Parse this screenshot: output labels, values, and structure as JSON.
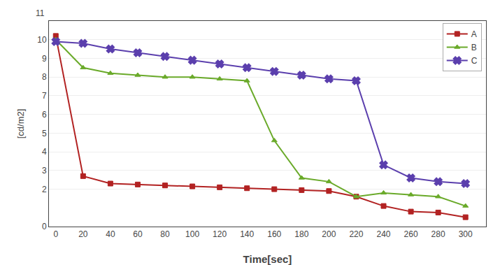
{
  "chart_data": {
    "type": "line",
    "x_label": "Time[sec]",
    "y_label": "[cd/m2]",
    "x": [
      0,
      20,
      40,
      60,
      80,
      100,
      120,
      140,
      160,
      180,
      200,
      220,
      240,
      260,
      280,
      300
    ],
    "series": [
      {
        "name": "A",
        "color": "#b22222",
        "marker": "square",
        "values": [
          10.2,
          2.7,
          2.3,
          2.25,
          2.2,
          2.15,
          2.1,
          2.05,
          2.0,
          1.95,
          1.9,
          1.6,
          1.1,
          0.8,
          0.75,
          0.5
        ]
      },
      {
        "name": "B",
        "color": "#6aaa2a",
        "marker": "triangle-up",
        "values": [
          10.0,
          8.5,
          8.2,
          8.1,
          8.0,
          8.0,
          7.9,
          7.8,
          4.6,
          2.6,
          2.4,
          1.6,
          1.8,
          1.7,
          1.6,
          1.1
        ]
      },
      {
        "name": "C",
        "color": "#5b3fad",
        "marker": "x",
        "values": [
          9.9,
          9.8,
          9.5,
          9.3,
          9.1,
          8.9,
          8.7,
          8.5,
          8.3,
          8.1,
          7.9,
          7.8,
          3.3,
          2.6,
          2.4,
          2.3
        ]
      }
    ],
    "xlim": [
      -5,
      315
    ],
    "xticks": [
      0,
      20,
      40,
      60,
      80,
      100,
      120,
      140,
      160,
      180,
      200,
      220,
      240,
      260,
      280,
      300
    ],
    "ylim": [
      0,
      11
    ],
    "yticks": [
      0,
      2,
      3,
      4,
      5,
      6,
      7,
      8,
      9,
      10
    ],
    "annotations": [
      {
        "text": "11"
      }
    ],
    "grid": true,
    "legend": "upper right"
  }
}
